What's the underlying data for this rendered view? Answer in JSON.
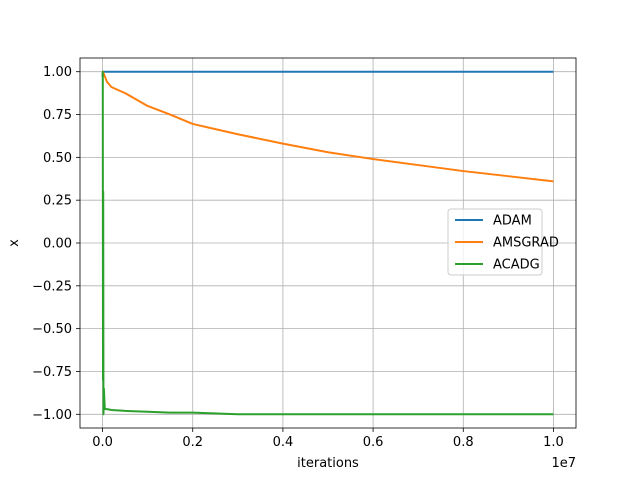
{
  "chart_data": {
    "type": "line",
    "title": "",
    "xlabel": "iterations",
    "ylabel": "x",
    "x_offset_label": "1e7",
    "xlim": [
      -0.05,
      1.05
    ],
    "ylim": [
      -1.08,
      1.08
    ],
    "x_ticks": [
      0.0,
      0.2,
      0.4,
      0.6,
      0.8,
      1.0
    ],
    "x_tick_labels": [
      "0.0",
      "0.2",
      "0.4",
      "0.6",
      "0.8",
      "1.0"
    ],
    "y_ticks": [
      1.0,
      0.75,
      0.5,
      0.25,
      0.0,
      -0.25,
      -0.5,
      -0.75,
      -1.0
    ],
    "y_tick_labels": [
      "1.00",
      "0.75",
      "0.50",
      "0.25",
      "0.00",
      "−0.25",
      "−0.50",
      "−0.75",
      "−1.00"
    ],
    "grid": true,
    "legend_position": "center-right",
    "series": [
      {
        "name": "ADAM",
        "color": "#1f77b4",
        "x": [
          0.0,
          0.001,
          0.2,
          0.4,
          0.6,
          0.8,
          1.0
        ],
        "y": [
          0.97,
          1.0,
          1.0,
          1.0,
          1.0,
          1.0,
          1.0
        ]
      },
      {
        "name": "AMSGRAD",
        "color": "#ff7f0e",
        "x": [
          0.0,
          0.001,
          0.01,
          0.02,
          0.05,
          0.1,
          0.15,
          0.2,
          0.3,
          0.4,
          0.5,
          0.6,
          0.7,
          0.8,
          0.9,
          1.0
        ],
        "y": [
          0.97,
          1.0,
          0.94,
          0.91,
          0.875,
          0.8,
          0.75,
          0.695,
          0.635,
          0.58,
          0.53,
          0.49,
          0.455,
          0.42,
          0.39,
          0.36
        ]
      },
      {
        "name": "ACADG",
        "color": "#2ca02c",
        "x": [
          0.0,
          0.0005,
          0.001,
          0.0015,
          0.002,
          0.003,
          0.005,
          0.01,
          0.02,
          0.05,
          0.1,
          0.15,
          0.2,
          0.3,
          0.5,
          0.7,
          1.0
        ],
        "y": [
          0.97,
          1.0,
          -0.8,
          0.3,
          -1.0,
          -0.85,
          -0.97,
          -0.97,
          -0.975,
          -0.98,
          -0.985,
          -0.99,
          -0.99,
          -1.0,
          -1.0,
          -1.0,
          -1.0
        ]
      }
    ]
  }
}
